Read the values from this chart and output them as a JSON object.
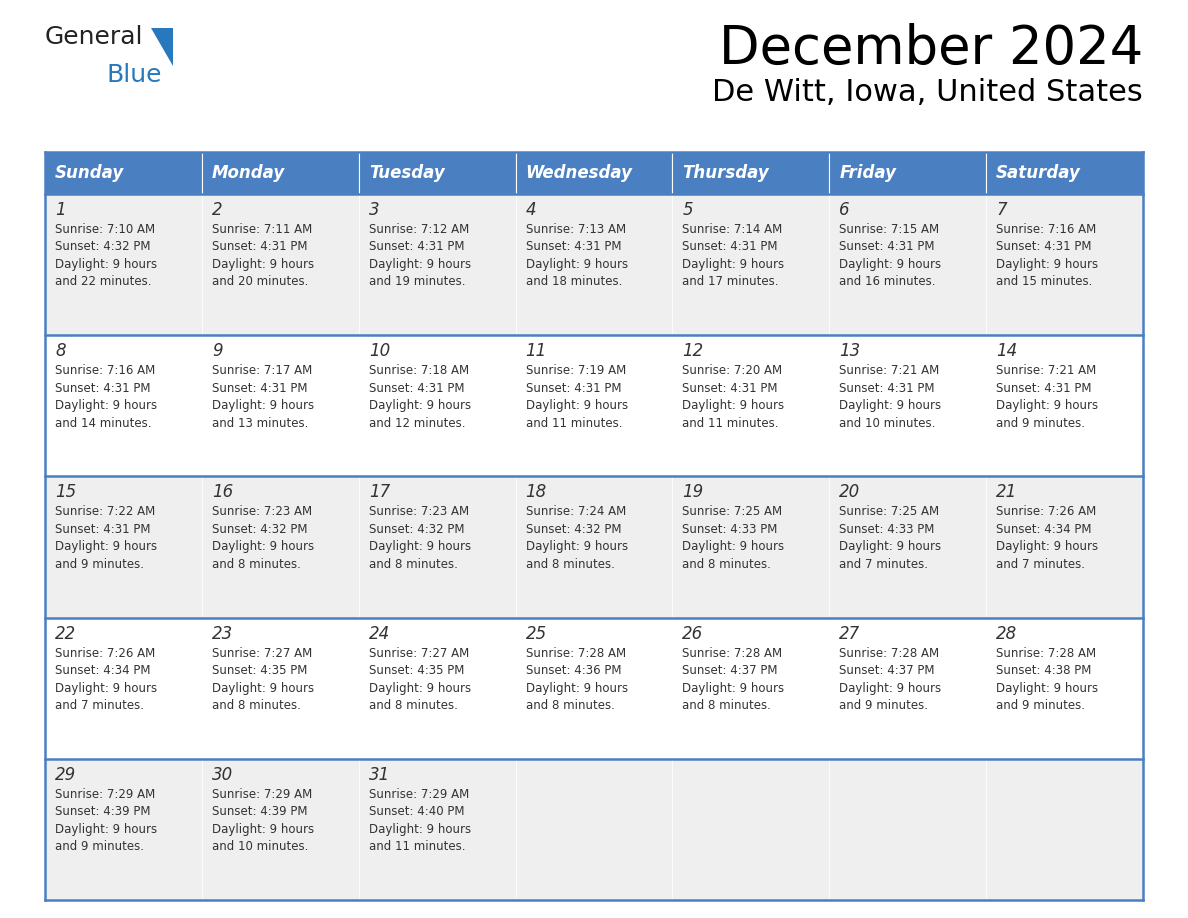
{
  "title": "December 2024",
  "subtitle": "De Witt, Iowa, United States",
  "header_color": "#4a7fc1",
  "header_text_color": "#FFFFFF",
  "days_of_week": [
    "Sunday",
    "Monday",
    "Tuesday",
    "Wednesday",
    "Thursday",
    "Friday",
    "Saturday"
  ],
  "cell_bg_row0": "#EFEFEF",
  "cell_bg_row1": "#FFFFFF",
  "border_color": "#4a7fc1",
  "text_color": "#333333",
  "calendar_data": [
    [
      {
        "day": "1",
        "sunrise": "7:10 AM",
        "sunset": "4:32 PM",
        "daylight": "9 hours",
        "daylight2": "and 22 minutes."
      },
      {
        "day": "2",
        "sunrise": "7:11 AM",
        "sunset": "4:31 PM",
        "daylight": "9 hours",
        "daylight2": "and 20 minutes."
      },
      {
        "day": "3",
        "sunrise": "7:12 AM",
        "sunset": "4:31 PM",
        "daylight": "9 hours",
        "daylight2": "and 19 minutes."
      },
      {
        "day": "4",
        "sunrise": "7:13 AM",
        "sunset": "4:31 PM",
        "daylight": "9 hours",
        "daylight2": "and 18 minutes."
      },
      {
        "day": "5",
        "sunrise": "7:14 AM",
        "sunset": "4:31 PM",
        "daylight": "9 hours",
        "daylight2": "and 17 minutes."
      },
      {
        "day": "6",
        "sunrise": "7:15 AM",
        "sunset": "4:31 PM",
        "daylight": "9 hours",
        "daylight2": "and 16 minutes."
      },
      {
        "day": "7",
        "sunrise": "7:16 AM",
        "sunset": "4:31 PM",
        "daylight": "9 hours",
        "daylight2": "and 15 minutes."
      }
    ],
    [
      {
        "day": "8",
        "sunrise": "7:16 AM",
        "sunset": "4:31 PM",
        "daylight": "9 hours",
        "daylight2": "and 14 minutes."
      },
      {
        "day": "9",
        "sunrise": "7:17 AM",
        "sunset": "4:31 PM",
        "daylight": "9 hours",
        "daylight2": "and 13 minutes."
      },
      {
        "day": "10",
        "sunrise": "7:18 AM",
        "sunset": "4:31 PM",
        "daylight": "9 hours",
        "daylight2": "and 12 minutes."
      },
      {
        "day": "11",
        "sunrise": "7:19 AM",
        "sunset": "4:31 PM",
        "daylight": "9 hours",
        "daylight2": "and 11 minutes."
      },
      {
        "day": "12",
        "sunrise": "7:20 AM",
        "sunset": "4:31 PM",
        "daylight": "9 hours",
        "daylight2": "and 11 minutes."
      },
      {
        "day": "13",
        "sunrise": "7:21 AM",
        "sunset": "4:31 PM",
        "daylight": "9 hours",
        "daylight2": "and 10 minutes."
      },
      {
        "day": "14",
        "sunrise": "7:21 AM",
        "sunset": "4:31 PM",
        "daylight": "9 hours",
        "daylight2": "and 9 minutes."
      }
    ],
    [
      {
        "day": "15",
        "sunrise": "7:22 AM",
        "sunset": "4:31 PM",
        "daylight": "9 hours",
        "daylight2": "and 9 minutes."
      },
      {
        "day": "16",
        "sunrise": "7:23 AM",
        "sunset": "4:32 PM",
        "daylight": "9 hours",
        "daylight2": "and 8 minutes."
      },
      {
        "day": "17",
        "sunrise": "7:23 AM",
        "sunset": "4:32 PM",
        "daylight": "9 hours",
        "daylight2": "and 8 minutes."
      },
      {
        "day": "18",
        "sunrise": "7:24 AM",
        "sunset": "4:32 PM",
        "daylight": "9 hours",
        "daylight2": "and 8 minutes."
      },
      {
        "day": "19",
        "sunrise": "7:25 AM",
        "sunset": "4:33 PM",
        "daylight": "9 hours",
        "daylight2": "and 8 minutes."
      },
      {
        "day": "20",
        "sunrise": "7:25 AM",
        "sunset": "4:33 PM",
        "daylight": "9 hours",
        "daylight2": "and 7 minutes."
      },
      {
        "day": "21",
        "sunrise": "7:26 AM",
        "sunset": "4:34 PM",
        "daylight": "9 hours",
        "daylight2": "and 7 minutes."
      }
    ],
    [
      {
        "day": "22",
        "sunrise": "7:26 AM",
        "sunset": "4:34 PM",
        "daylight": "9 hours",
        "daylight2": "and 7 minutes."
      },
      {
        "day": "23",
        "sunrise": "7:27 AM",
        "sunset": "4:35 PM",
        "daylight": "9 hours",
        "daylight2": "and 8 minutes."
      },
      {
        "day": "24",
        "sunrise": "7:27 AM",
        "sunset": "4:35 PM",
        "daylight": "9 hours",
        "daylight2": "and 8 minutes."
      },
      {
        "day": "25",
        "sunrise": "7:28 AM",
        "sunset": "4:36 PM",
        "daylight": "9 hours",
        "daylight2": "and 8 minutes."
      },
      {
        "day": "26",
        "sunrise": "7:28 AM",
        "sunset": "4:37 PM",
        "daylight": "9 hours",
        "daylight2": "and 8 minutes."
      },
      {
        "day": "27",
        "sunrise": "7:28 AM",
        "sunset": "4:37 PM",
        "daylight": "9 hours",
        "daylight2": "and 9 minutes."
      },
      {
        "day": "28",
        "sunrise": "7:28 AM",
        "sunset": "4:38 PM",
        "daylight": "9 hours",
        "daylight2": "and 9 minutes."
      }
    ],
    [
      {
        "day": "29",
        "sunrise": "7:29 AM",
        "sunset": "4:39 PM",
        "daylight": "9 hours",
        "daylight2": "and 9 minutes."
      },
      {
        "day": "30",
        "sunrise": "7:29 AM",
        "sunset": "4:39 PM",
        "daylight": "9 hours",
        "daylight2": "and 10 minutes."
      },
      {
        "day": "31",
        "sunrise": "7:29 AM",
        "sunset": "4:40 PM",
        "daylight": "9 hours",
        "daylight2": "and 11 minutes."
      },
      null,
      null,
      null,
      null
    ]
  ],
  "logo_general_color": "#222222",
  "logo_blue_color": "#2878BE",
  "logo_triangle_color": "#2878BE"
}
